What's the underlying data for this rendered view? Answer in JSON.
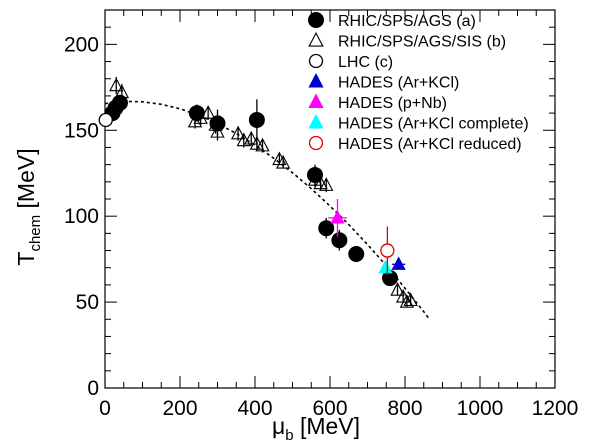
{
  "chart_data": {
    "type": "scatter",
    "xlabel": "μ",
    "xlabel_sub": "b",
    "xlabel_unit": "[MeV]",
    "ylabel": "T",
    "ylabel_sub": "chem",
    "ylabel_unit": "[MeV]",
    "xlim": [
      0,
      1200
    ],
    "ylim": [
      0,
      220
    ],
    "x_ticks": [
      0,
      200,
      400,
      600,
      800,
      1000,
      1200
    ],
    "y_ticks": [
      0,
      50,
      100,
      150,
      200
    ],
    "grid": false,
    "legend_position": "top-right",
    "series": [
      {
        "name": "RHIC/SPS/AGS (a)",
        "marker": "filled-circle",
        "color": "#000000",
        "points": [
          {
            "x": 20,
            "y": 160,
            "xerr": 0,
            "yerr": 4
          },
          {
            "x": 28,
            "y": 163,
            "xerr": 0,
            "yerr": 4
          },
          {
            "x": 40,
            "y": 166,
            "xerr": 0,
            "yerr": 4
          },
          {
            "x": 245,
            "y": 160,
            "xerr": 20,
            "yerr": 5
          },
          {
            "x": 300,
            "y": 154,
            "xerr": 20,
            "yerr": 8
          },
          {
            "x": 405,
            "y": 156,
            "xerr": 15,
            "yerr": 12
          },
          {
            "x": 560,
            "y": 124,
            "xerr": 10,
            "yerr": 6
          },
          {
            "x": 590,
            "y": 93,
            "xerr": 15,
            "yerr": 6
          },
          {
            "x": 625,
            "y": 86,
            "xerr": 15,
            "yerr": 6
          },
          {
            "x": 670,
            "y": 78,
            "xerr": 0,
            "yerr": 0
          },
          {
            "x": 760,
            "y": 64,
            "xerr": 10,
            "yerr": 4
          }
        ]
      },
      {
        "name": "RHIC/SPS/AGS/SIS (b)",
        "marker": "open-triangle",
        "color": "#000000",
        "points": [
          {
            "x": 25,
            "y": 165,
            "xerr": 0,
            "yerr": 4
          },
          {
            "x": 30,
            "y": 176,
            "xerr": 0,
            "yerr": 5
          },
          {
            "x": 45,
            "y": 172,
            "xerr": 0,
            "yerr": 5
          },
          {
            "x": 240,
            "y": 155,
            "xerr": 0,
            "yerr": 4
          },
          {
            "x": 255,
            "y": 157,
            "xerr": 0,
            "yerr": 4
          },
          {
            "x": 275,
            "y": 160,
            "xerr": 0,
            "yerr": 4
          },
          {
            "x": 295,
            "y": 153,
            "xerr": 0,
            "yerr": 5
          },
          {
            "x": 300,
            "y": 149,
            "xerr": 0,
            "yerr": 5
          },
          {
            "x": 355,
            "y": 148,
            "xerr": 0,
            "yerr": 4
          },
          {
            "x": 370,
            "y": 144,
            "xerr": 0,
            "yerr": 4
          },
          {
            "x": 390,
            "y": 145,
            "xerr": 0,
            "yerr": 4
          },
          {
            "x": 405,
            "y": 142,
            "xerr": 0,
            "yerr": 4
          },
          {
            "x": 420,
            "y": 141,
            "xerr": 0,
            "yerr": 4
          },
          {
            "x": 465,
            "y": 133,
            "xerr": 0,
            "yerr": 3
          },
          {
            "x": 475,
            "y": 131,
            "xerr": 0,
            "yerr": 3
          },
          {
            "x": 560,
            "y": 121,
            "xerr": 0,
            "yerr": 4
          },
          {
            "x": 575,
            "y": 119,
            "xerr": 0,
            "yerr": 4
          },
          {
            "x": 590,
            "y": 118,
            "xerr": 0,
            "yerr": 4
          },
          {
            "x": 780,
            "y": 57,
            "xerr": 0,
            "yerr": 3
          },
          {
            "x": 795,
            "y": 53,
            "xerr": 0,
            "yerr": 3
          },
          {
            "x": 805,
            "y": 50,
            "xerr": 0,
            "yerr": 3
          },
          {
            "x": 815,
            "y": 51,
            "xerr": 0,
            "yerr": 3
          }
        ]
      },
      {
        "name": "LHC (c)",
        "marker": "open-circle",
        "color": "#000000",
        "points": [
          {
            "x": 2,
            "y": 156,
            "xerr": 0,
            "yerr": 0
          }
        ]
      },
      {
        "name": "HADES (Ar+KCl)",
        "marker": "filled-triangle",
        "color": "#0000cc",
        "points": [
          {
            "x": 783,
            "y": 72,
            "xerr": 18,
            "yerr": 3
          }
        ]
      },
      {
        "name": "HADES (p+Nb)",
        "marker": "filled-triangle",
        "color": "#ff00ff",
        "points": [
          {
            "x": 620,
            "y": 99,
            "xerr": 25,
            "yerr": 11
          }
        ]
      },
      {
        "name": "HADES (Ar+KCl complete)",
        "marker": "filled-triangle",
        "color": "#00ffff",
        "points": [
          {
            "x": 748,
            "y": 70,
            "xerr": 10,
            "yerr": 3
          }
        ]
      },
      {
        "name": "HADES (Ar+KCl reduced)",
        "marker": "open-circle",
        "color": "#dd0000",
        "points": [
          {
            "x": 753,
            "y": 80,
            "xerr": 0,
            "yerr": 14
          }
        ]
      }
    ],
    "fit_curve": {
      "style": "dotted",
      "color": "#000000",
      "x": [
        0,
        50,
        100,
        150,
        200,
        250,
        300,
        350,
        400,
        450,
        500,
        550,
        600,
        650,
        700,
        750,
        800,
        850,
        865
      ],
      "y": [
        165.5,
        166.8,
        166.6,
        165.1,
        162.5,
        158.7,
        153.9,
        148.1,
        141.4,
        133.7,
        125.3,
        116.0,
        105.9,
        95.1,
        83.5,
        71.2,
        58.1,
        44.4,
        40.0
      ]
    }
  }
}
